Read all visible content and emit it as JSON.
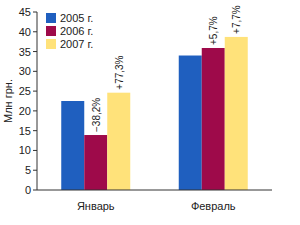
{
  "chart_data": {
    "type": "bar",
    "y_label": "Млн грн.",
    "categories": [
      "Январь",
      "Февраль"
    ],
    "series": [
      {
        "name": "2005 г.",
        "color": "#1f5fbf",
        "values": [
          22.5,
          34
        ]
      },
      {
        "name": "2006 г.",
        "color": "#9e0a4a",
        "values": [
          13.9,
          35.9
        ],
        "annotations": [
          "−38,2%",
          "+5,7%"
        ]
      },
      {
        "name": "2007 г.",
        "color": "#ffe27a",
        "values": [
          24.6,
          38.7
        ],
        "annotations": [
          "+77,3%",
          "+7,7%"
        ]
      }
    ],
    "ylim": [
      0,
      45
    ],
    "yticks": [
      0,
      5,
      10,
      15,
      20,
      25,
      30,
      35,
      40,
      45
    ],
    "grid": false,
    "legend": "top-left"
  }
}
